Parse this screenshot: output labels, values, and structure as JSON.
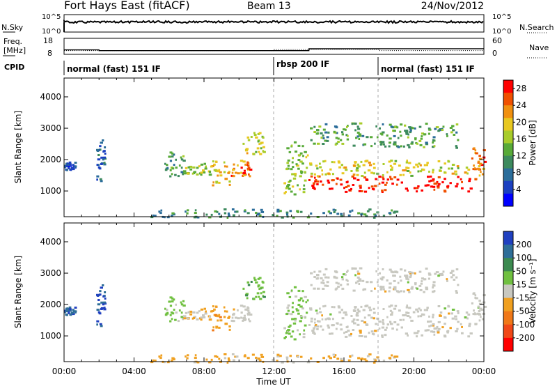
{
  "header": {
    "station": "Fort Hays East (fitACF)",
    "beam": "Beam 13",
    "date": "24/Nov/2012"
  },
  "noise_panel": {
    "left_label": "N.Sky",
    "right_label": "N.Search",
    "left_ticks": [
      "10^5",
      "10^0"
    ],
    "right_ticks": [
      "10^5",
      "10^0"
    ]
  },
  "freq_panel": {
    "left_label_1": "Freq.",
    "left_label_2": "[MHz]",
    "right_label": "Nave",
    "left_ticks": [
      "18",
      "8"
    ],
    "right_ticks": [
      "60",
      "0"
    ],
    "freq_steps": [
      {
        "start_hour": 0.0,
        "end_hour": 2.0,
        "freq_mhz": 10.8
      },
      {
        "start_hour": 2.0,
        "end_hour": 14.0,
        "freq_mhz": 10.3
      },
      {
        "start_hour": 14.0,
        "end_hour": 24.0,
        "freq_mhz": 11.5
      }
    ],
    "nave_steps": [
      {
        "start_hour": 0.0,
        "end_hour": 12.0,
        "nave": 14
      },
      {
        "start_hour": 12.0,
        "end_hour": 18.0,
        "nave": 18
      },
      {
        "start_hour": 18.0,
        "end_hour": 24.0,
        "nave": 14
      }
    ]
  },
  "cpid": {
    "label": "CPID",
    "segments": [
      {
        "start_hour": 0,
        "text": "normal (fast) 151 IF"
      },
      {
        "start_hour": 12,
        "text": "rbsp 200 IF"
      },
      {
        "start_hour": 18,
        "text": "normal (fast) 151 IF"
      }
    ]
  },
  "xaxis": {
    "label": "Time UT",
    "ticks": [
      "00:00",
      "04:00",
      "08:00",
      "12:00",
      "16:00",
      "20:00",
      "00:00"
    ]
  },
  "power_panel": {
    "ylabel": "Slant Range [km]",
    "colorbar_label": "Power [dB]",
    "yticks": [
      "1000",
      "2000",
      "3000",
      "4000"
    ],
    "colorbar_ticks": [
      "4",
      "8",
      "12",
      "16",
      "20",
      "24",
      "28"
    ]
  },
  "velocity_panel": {
    "ylabel": "Slant Range [km]",
    "colorbar_label": "Velocity [m s⁻¹]",
    "yticks": [
      "1000",
      "2000",
      "3000",
      "4000"
    ],
    "colorbar_ticks": [
      "200",
      "100",
      "50",
      "15",
      "-15",
      "-50",
      "-100",
      "-200"
    ]
  },
  "chart_data": {
    "type": "heatmap",
    "title": "Fort Hays East (fitACF)",
    "x_unit": "hours UT",
    "xlim": [
      0,
      24
    ],
    "ylim_km": [
      180,
      4600
    ],
    "xlabel": "Time UT",
    "ylabel": "Slant Range [km]",
    "power_scale_db": [
      0,
      30
    ],
    "velocity_scale_ms": [
      -250,
      250
    ],
    "power_colors": [
      "#0000ff",
      "#1b40c0",
      "#2b6d9a",
      "#3d8a5e",
      "#58aa38",
      "#a8cc2a",
      "#e8c820",
      "#f09010",
      "#f05000",
      "#ff0000"
    ],
    "velocity_colors": [
      "#2040c0",
      "#2e6e98",
      "#3c8a50",
      "#70c040",
      "#c8c8c0",
      "#f0a020",
      "#f07818",
      "#f04818",
      "#ff0000"
    ],
    "echo_regions": [
      {
        "t0": 0.0,
        "t1": 0.6,
        "r0": 1700,
        "r1": 1950,
        "power_db": 6,
        "velocity_ms": 180
      },
      {
        "t0": 1.8,
        "t1": 2.3,
        "r0": 1300,
        "r1": 2700,
        "power_db": 7,
        "velocity_ms": 200
      },
      {
        "t0": 5.7,
        "t1": 6.8,
        "r0": 1500,
        "r1": 2300,
        "power_db": 12,
        "velocity_ms": 50
      },
      {
        "t0": 6.8,
        "t1": 8.3,
        "r0": 1550,
        "r1": 1900,
        "power_db": 16,
        "velocity_ms": -40
      },
      {
        "t0": 8.3,
        "t1": 9.5,
        "r0": 1200,
        "r1": 2000,
        "power_db": 20,
        "velocity_ms": -60
      },
      {
        "t0": 9.5,
        "t1": 10.6,
        "r0": 1500,
        "r1": 2000,
        "power_db": 24,
        "velocity_ms": 0
      },
      {
        "t0": 10.2,
        "t1": 11.4,
        "r0": 2200,
        "r1": 2900,
        "power_db": 18,
        "velocity_ms": 60
      },
      {
        "t0": 12.5,
        "t1": 13.9,
        "r0": 900,
        "r1": 2600,
        "power_db": 16,
        "velocity_ms": 40
      },
      {
        "t0": 13.9,
        "t1": 23.2,
        "r0": 1000,
        "r1": 1500,
        "power_db": 28,
        "velocity_ms": 0
      },
      {
        "t0": 13.9,
        "t1": 23.2,
        "r0": 1500,
        "r1": 2000,
        "power_db": 18,
        "velocity_ms": 0
      },
      {
        "t0": 14.0,
        "t1": 22.5,
        "r0": 2400,
        "r1": 3200,
        "power_db": 12,
        "velocity_ms": 0
      },
      {
        "t0": 23.2,
        "t1": 24.0,
        "r0": 1400,
        "r1": 2400,
        "power_db": 24,
        "velocity_ms": 0
      },
      {
        "t0": 4.8,
        "t1": 19.0,
        "r0": 180,
        "r1": 450,
        "power_db": 10,
        "velocity_ms": -40
      }
    ]
  }
}
